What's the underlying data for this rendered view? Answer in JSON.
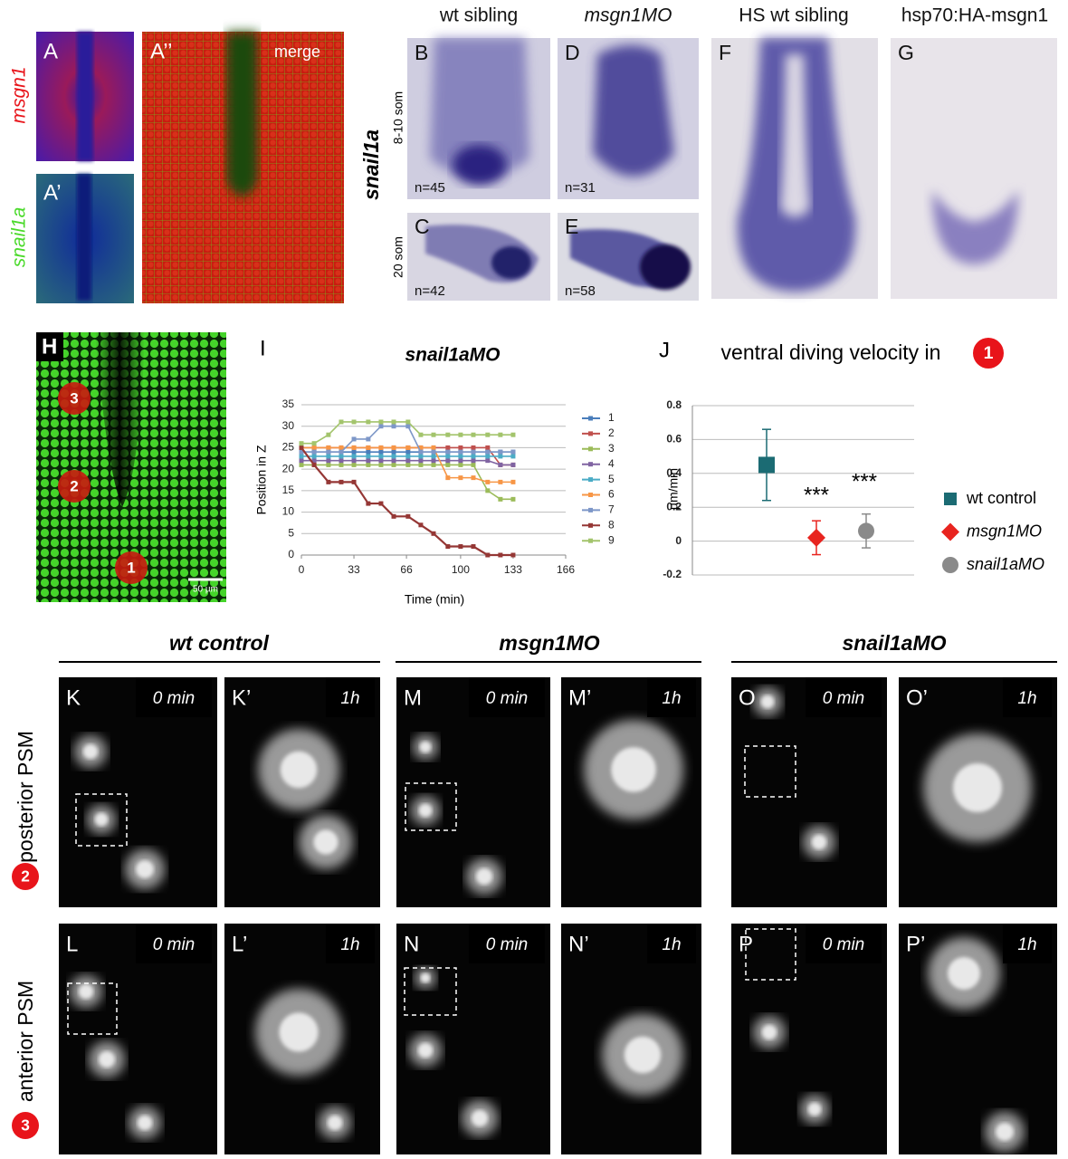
{
  "figure": {
    "a": {
      "letter": "A",
      "gene": "msgn1"
    },
    "a1": {
      "letter": "A’",
      "gene": "snail1a"
    },
    "a2": {
      "letter": "A’’",
      "label": "merge"
    },
    "columns": [
      "wt sibling",
      "msgn1MO",
      "HS wt sibling",
      "hsp70:HA-msgn1"
    ],
    "gene": "snail1a",
    "stages": [
      "8-10 som",
      "20 som"
    ],
    "insitu": [
      {
        "letter": "B",
        "n": "n=45"
      },
      {
        "letter": "C",
        "n": "n=42"
      },
      {
        "letter": "D",
        "n": "n=31"
      },
      {
        "letter": "E",
        "n": "n=58"
      },
      {
        "letter": "F"
      },
      {
        "letter": "G"
      }
    ],
    "h": {
      "letter": "H",
      "regions": [
        "1",
        "2",
        "3"
      ],
      "scale": "50 µm"
    },
    "i_letter": "I",
    "j_letter": "J",
    "groups": [
      "wt control",
      "msgn1MO",
      "snail1aMO"
    ],
    "rows": [
      {
        "badge": "2",
        "label": "posterior PSM"
      },
      {
        "badge": "3",
        "label": "anterior PSM"
      }
    ],
    "movies": [
      [
        {
          "letter": "K",
          "time": "0 min"
        },
        {
          "letter": "K’",
          "time": "1h"
        },
        {
          "letter": "M",
          "time": "0 min"
        },
        {
          "letter": "M’",
          "time": "1h"
        },
        {
          "letter": "O",
          "time": "0 min"
        },
        {
          "letter": "O’",
          "time": "1h"
        }
      ],
      [
        {
          "letter": "L",
          "time": "0 min"
        },
        {
          "letter": "L’",
          "time": "1h"
        },
        {
          "letter": "N",
          "time": "0 min"
        },
        {
          "letter": "N’",
          "time": "1h"
        },
        {
          "letter": "P",
          "time": "0 min"
        },
        {
          "letter": "P’",
          "time": "1h"
        }
      ]
    ]
  },
  "chart_data": [
    {
      "type": "line",
      "title": "snail1aMO",
      "y_label": "Position in Z",
      "x_label": "Time (min)",
      "x": [
        0,
        8,
        17,
        25,
        33,
        42,
        50,
        58,
        67,
        75,
        83,
        92,
        100,
        108,
        117,
        125,
        133
      ],
      "xlim": [
        0,
        166
      ],
      "xticks": [
        0,
        33,
        66,
        100,
        133,
        166
      ],
      "ylim": [
        0,
        35
      ],
      "yticks": [
        0,
        5,
        10,
        15,
        20,
        25,
        30,
        35
      ],
      "grid": true,
      "legend": "right",
      "series": [
        {
          "name": "1",
          "color": "#4a7ebb",
          "values": [
            24,
            24,
            24,
            24,
            24,
            24,
            24,
            24,
            24,
            24,
            24,
            24,
            24,
            24,
            24,
            24,
            24
          ]
        },
        {
          "name": "2",
          "color": "#c0504d",
          "values": [
            25,
            25,
            25,
            25,
            25,
            25,
            25,
            25,
            25,
            25,
            25,
            25,
            25,
            25,
            25,
            21,
            21
          ]
        },
        {
          "name": "3",
          "color": "#9bbb59",
          "values": [
            21,
            21,
            21,
            21,
            21,
            21,
            21,
            21,
            21,
            21,
            21,
            21,
            21,
            21,
            15,
            13,
            13
          ]
        },
        {
          "name": "4",
          "color": "#8064a2",
          "values": [
            22,
            22,
            22,
            22,
            22,
            22,
            22,
            22,
            22,
            22,
            22,
            22,
            22,
            22,
            22,
            21,
            21
          ]
        },
        {
          "name": "5",
          "color": "#4bacc6",
          "values": [
            23,
            23,
            23,
            23,
            23,
            23,
            23,
            23,
            23,
            23,
            23,
            23,
            23,
            23,
            23,
            23,
            23
          ]
        },
        {
          "name": "6",
          "color": "#f79646",
          "values": [
            25,
            25,
            25,
            25,
            25,
            25,
            25,
            25,
            25,
            25,
            25,
            18,
            18,
            18,
            17,
            17,
            17
          ]
        },
        {
          "name": "7",
          "color": "#7d97c8",
          "values": [
            24,
            24,
            24,
            24,
            27,
            27,
            30,
            30,
            30,
            24,
            24,
            24,
            24,
            24,
            24,
            24,
            24
          ]
        },
        {
          "name": "8",
          "color": "#953735",
          "values": [
            25,
            21,
            17,
            17,
            17,
            12,
            12,
            9,
            9,
            7,
            5,
            2,
            2,
            2,
            0,
            0,
            0
          ]
        },
        {
          "name": "9",
          "color": "#a3c46c",
          "values": [
            26,
            26,
            28,
            31,
            31,
            31,
            31,
            31,
            31,
            28,
            28,
            28,
            28,
            28,
            28,
            28,
            28
          ]
        }
      ]
    },
    {
      "type": "errorbar",
      "title": "ventral diving velocity in",
      "title_badge": "1",
      "y_label": "µm/min",
      "ylim": [
        -0.2,
        0.8
      ],
      "yticks": [
        -0.2,
        0,
        0.2,
        0.4,
        0.6,
        0.8
      ],
      "grid": true,
      "legend": "right",
      "annotations": [
        "***",
        "***"
      ],
      "series": [
        {
          "name": "wt control",
          "color": "#1b6b73",
          "marker": "square",
          "values": [
            0.45
          ],
          "errors": [
            0.21
          ]
        },
        {
          "name": "msgn1MO",
          "color": "#e8241f",
          "marker": "diamond",
          "values": [
            0.02
          ],
          "errors": [
            0.1
          ]
        },
        {
          "name": "snail1aMO",
          "color": "#8a8a8a",
          "marker": "circle",
          "values": [
            0.06
          ],
          "errors": [
            0.1
          ]
        }
      ]
    }
  ]
}
